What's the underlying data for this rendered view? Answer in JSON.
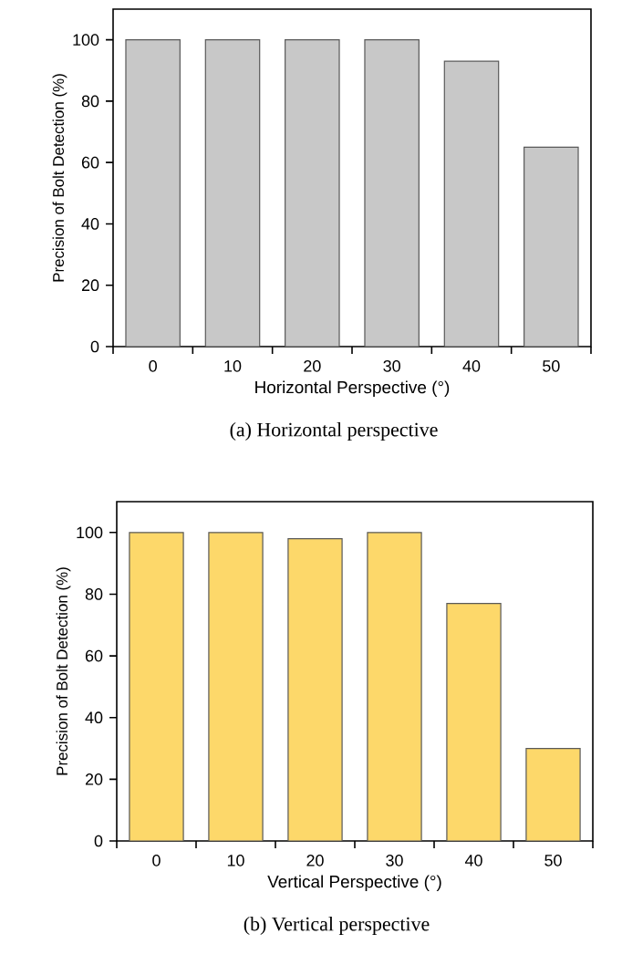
{
  "chart_data": [
    {
      "type": "bar",
      "categories": [
        "0",
        "10",
        "20",
        "30",
        "40",
        "50"
      ],
      "values": [
        100,
        100,
        100,
        100,
        93,
        65
      ],
      "color": "#c8c8c8",
      "xlabel": "Horizontal Perspective (°)",
      "ylabel": "Precision of Bolt Detection (%)",
      "ylim": [
        0,
        110
      ],
      "yticks": [
        0,
        20,
        40,
        60,
        80,
        100
      ],
      "annotations": [
        "(a) Horizontal perspective"
      ]
    },
    {
      "type": "bar",
      "categories": [
        "0",
        "10",
        "20",
        "30",
        "40",
        "50"
      ],
      "values": [
        100,
        100,
        98,
        100,
        77,
        30
      ],
      "color": "#fdd86a",
      "xlabel": "Vertical Perspective (°)",
      "ylabel": "Precision of Bolt Detection (%)",
      "ylim": [
        0,
        110
      ],
      "yticks": [
        0,
        20,
        40,
        60,
        80,
        100
      ],
      "annotations": [
        "(b) Vertical perspective"
      ]
    }
  ]
}
